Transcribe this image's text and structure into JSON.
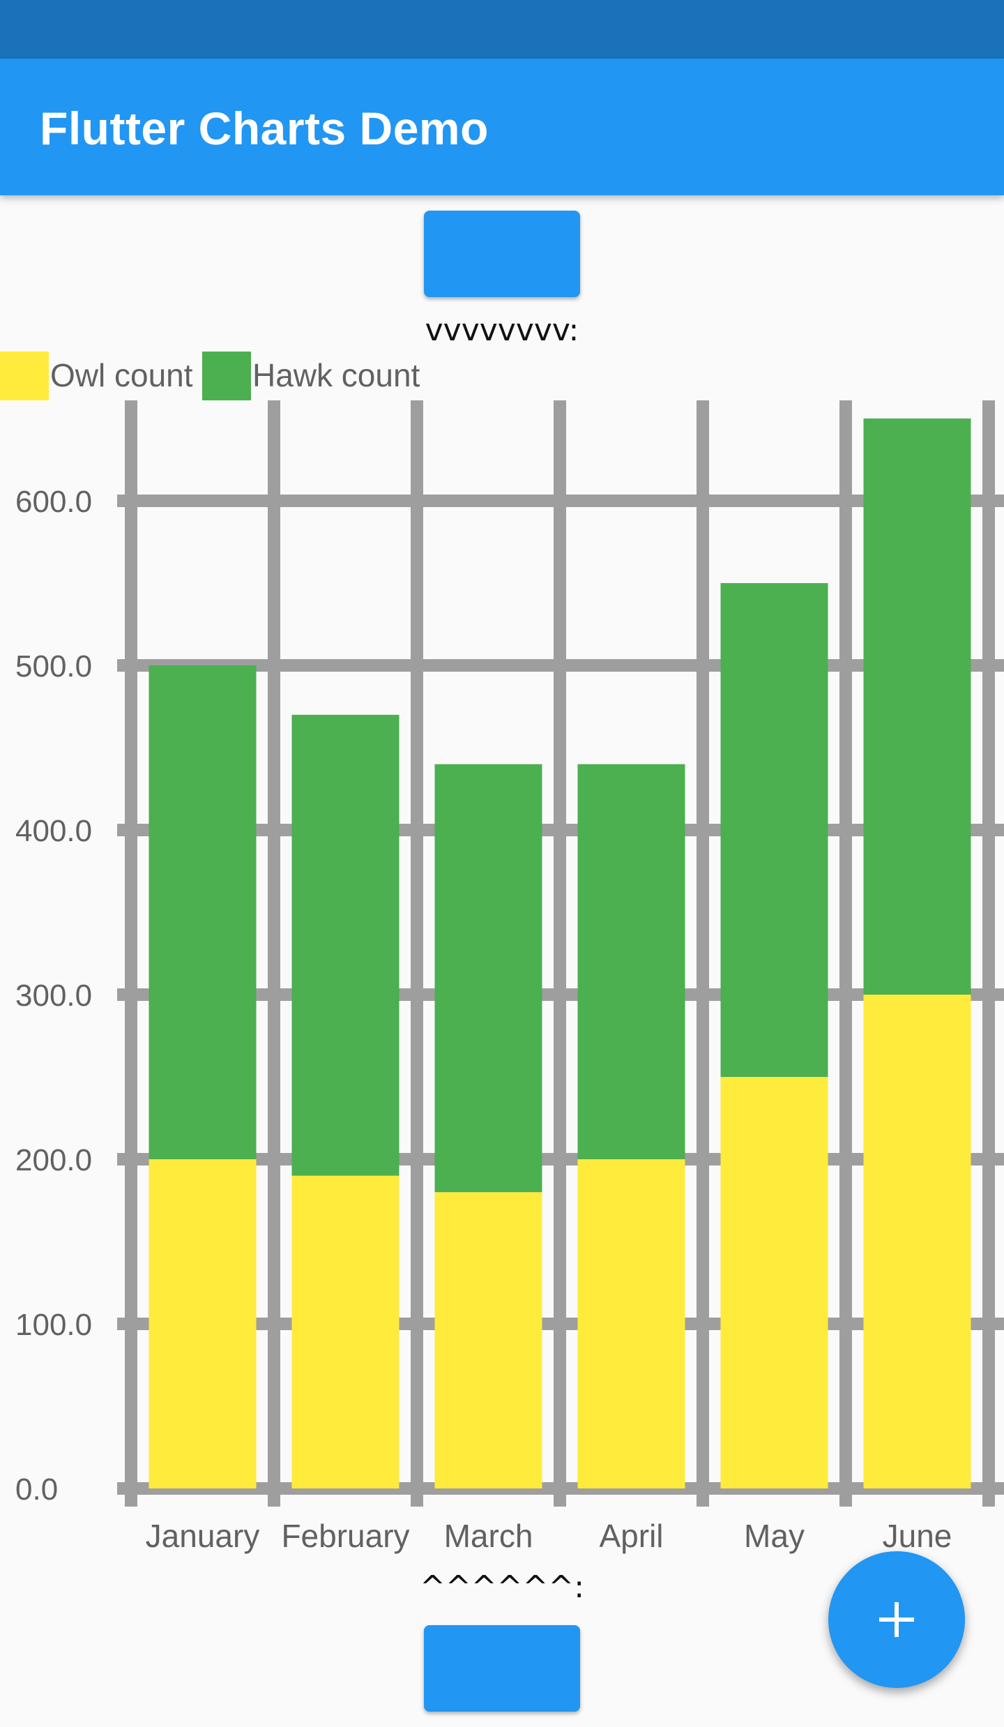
{
  "app_bar": {
    "title": "Flutter Charts Demo"
  },
  "markers": {
    "top": "vvvvvvvv:",
    "bottom": "^^^^^^:"
  },
  "fab": {
    "icon": "plus-icon"
  },
  "colors": {
    "primary": "#2196f3",
    "status_bar": "#1a73ba",
    "grid": "#9e9e9e",
    "owl": "#ffeb3b",
    "hawk": "#4caf50"
  },
  "chart_data": {
    "type": "bar",
    "stacked": true,
    "categories": [
      "January",
      "February",
      "March",
      "April",
      "May",
      "June"
    ],
    "series": [
      {
        "name": "Owl count",
        "color": "#ffeb3b",
        "values": [
          200,
          190,
          180,
          200,
          250,
          300
        ]
      },
      {
        "name": "Hawk count",
        "color": "#4caf50",
        "values": [
          300,
          280,
          260,
          240,
          300,
          350
        ]
      }
    ],
    "y_ticks": [
      "0.0",
      "100.0",
      "200.0",
      "300.0",
      "400.0",
      "500.0",
      "600.0"
    ],
    "ylim": [
      0,
      600
    ],
    "grid": true,
    "legend_position": "top-left"
  }
}
